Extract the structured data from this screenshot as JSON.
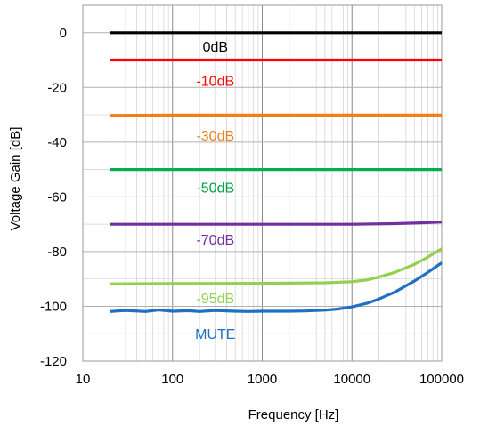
{
  "chart_data": {
    "type": "line",
    "title": "",
    "xlabel": "Frequency [Hz]",
    "ylabel": "Voltage Gain [dB]",
    "xscale": "log",
    "xlim": [
      10,
      100000
    ],
    "ylim": [
      -120,
      10
    ],
    "x_ticks": [
      10,
      100,
      1000,
      10000,
      100000
    ],
    "x_tick_labels": [
      "10",
      "100",
      "1000",
      "10000",
      "100000"
    ],
    "y_ticks": [
      0,
      -20,
      -40,
      -60,
      -80,
      -100,
      -120
    ],
    "y_tick_labels": [
      "0",
      "-20",
      "-40",
      "-60",
      "-80",
      "-100",
      "-120"
    ],
    "grid": true,
    "legend": "inline labels",
    "series": [
      {
        "name": "0dB",
        "color": "#000000",
        "label_color": "#000000",
        "label_at": [
          300,
          -5
        ],
        "x": [
          20,
          100,
          1000,
          10000,
          100000
        ],
        "y": [
          0,
          0,
          0,
          0,
          0
        ]
      },
      {
        "name": "-10dB",
        "color": "#ff0000",
        "label_color": "#ff0000",
        "label_at": [
          300,
          -17.5
        ],
        "x": [
          20,
          100,
          1000,
          10000,
          100000
        ],
        "y": [
          -10,
          -10,
          -10,
          -10,
          -10
        ]
      },
      {
        "name": "-30dB",
        "color": "#f07f1a",
        "label_color": "#f07f1a",
        "label_at": [
          300,
          -37.5
        ],
        "x": [
          20,
          100,
          1000,
          10000,
          100000
        ],
        "y": [
          -30.2,
          -30.1,
          -30.1,
          -30.1,
          -30.1
        ]
      },
      {
        "name": "-50dB",
        "color": "#00b050",
        "label_color": "#00a040",
        "label_at": [
          300,
          -56.5
        ],
        "x": [
          20,
          100,
          1000,
          10000,
          100000
        ],
        "y": [
          -50,
          -50,
          -50,
          -50,
          -50
        ]
      },
      {
        "name": "-70dB",
        "color": "#7030a0",
        "label_color": "#7030a0",
        "label_at": [
          300,
          -75.5
        ],
        "x": [
          20,
          100,
          1000,
          10000,
          30000,
          60000,
          100000
        ],
        "y": [
          -70,
          -70,
          -70,
          -70,
          -69.8,
          -69.5,
          -69.2
        ]
      },
      {
        "name": "-95dB",
        "color": "#92d050",
        "label_color": "#92d050",
        "label_at": [
          300,
          -97
        ],
        "x": [
          20,
          100,
          1000,
          5000,
          10000,
          15000,
          20000,
          30000,
          50000,
          70000,
          100000
        ],
        "y": [
          -91.8,
          -91.7,
          -91.6,
          -91.4,
          -91.0,
          -90.3,
          -89.3,
          -87.6,
          -84.6,
          -82.0,
          -79.0
        ]
      },
      {
        "name": "MUTE",
        "color": "#1f70c1",
        "label_color": "#1f70c1",
        "label_at": [
          300,
          -110
        ],
        "x": [
          20,
          30,
          50,
          70,
          100,
          150,
          200,
          300,
          500,
          700,
          1000,
          2000,
          3000,
          5000,
          7000,
          10000,
          15000,
          20000,
          30000,
          50000,
          70000,
          100000
        ],
        "y": [
          -101.9,
          -101.5,
          -101.9,
          -101.3,
          -101.8,
          -101.6,
          -101.9,
          -101.5,
          -101.8,
          -101.9,
          -101.8,
          -101.8,
          -101.7,
          -101.4,
          -101.0,
          -100.2,
          -98.8,
          -97.3,
          -94.8,
          -90.7,
          -87.6,
          -84.1
        ]
      }
    ]
  }
}
